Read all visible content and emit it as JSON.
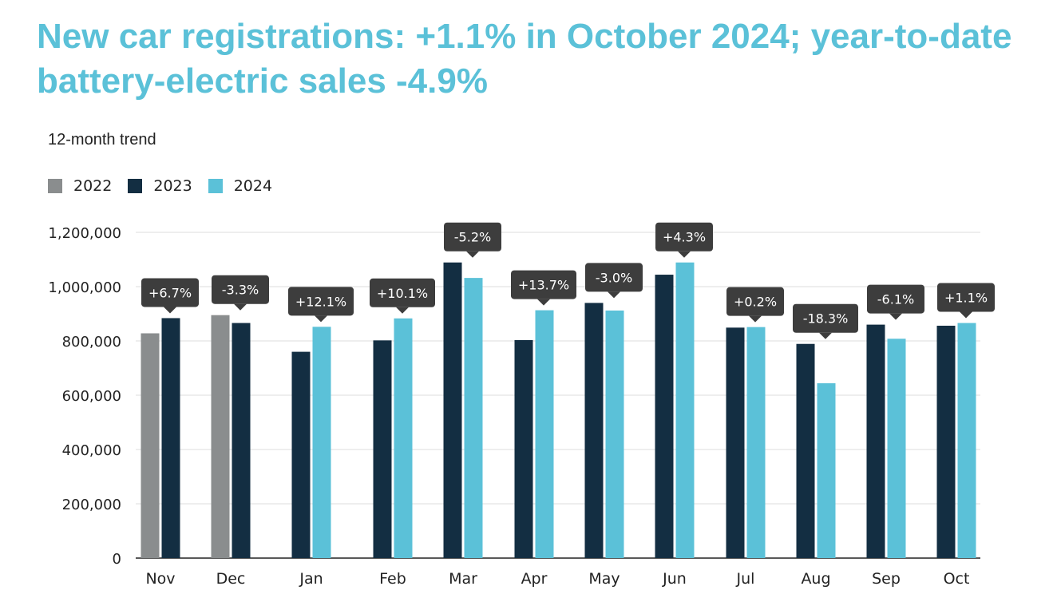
{
  "chart_data": {
    "type": "bar",
    "title": "New car registrations: +1.1% in October 2024; year-to-date battery-electric sales -4.9%",
    "subtitle": "12-month trend",
    "categories": [
      "Nov",
      "Dec",
      "Jan",
      "Feb",
      "Mar",
      "Apr",
      "May",
      "Jun",
      "Jul",
      "Aug",
      "Sep",
      "Oct"
    ],
    "series": [
      {
        "name": "2022",
        "color": "#8a8d8e",
        "values": [
          828000,
          895000,
          null,
          null,
          null,
          null,
          null,
          null,
          null,
          null,
          null,
          null
        ]
      },
      {
        "name": "2023",
        "color": "#132e42",
        "values": [
          884000,
          866000,
          760000,
          802000,
          1089000,
          803000,
          940000,
          1044000,
          849000,
          789000,
          860000,
          856000
        ]
      },
      {
        "name": "2024",
        "color": "#5bc1d8",
        "values": [
          null,
          null,
          852000,
          883000,
          1032000,
          913000,
          912000,
          1089000,
          851000,
          644000,
          808000,
          866000
        ]
      }
    ],
    "annotations": [
      "+6.7%",
      "-3.3%",
      "+12.1%",
      "+10.1%",
      "-5.2%",
      "+13.7%",
      "-3.0%",
      "+4.3%",
      "+0.2%",
      "-18.3%",
      "-6.1%",
      "+1.1%"
    ],
    "yticks": [
      "0",
      "200,000",
      "400,000",
      "600,000",
      "800,000",
      "1,000,000",
      "1,200,000"
    ],
    "ylim": [
      0,
      1200000
    ],
    "xlabel": "",
    "ylabel": "",
    "grid": true,
    "legend_position": "top-left"
  }
}
